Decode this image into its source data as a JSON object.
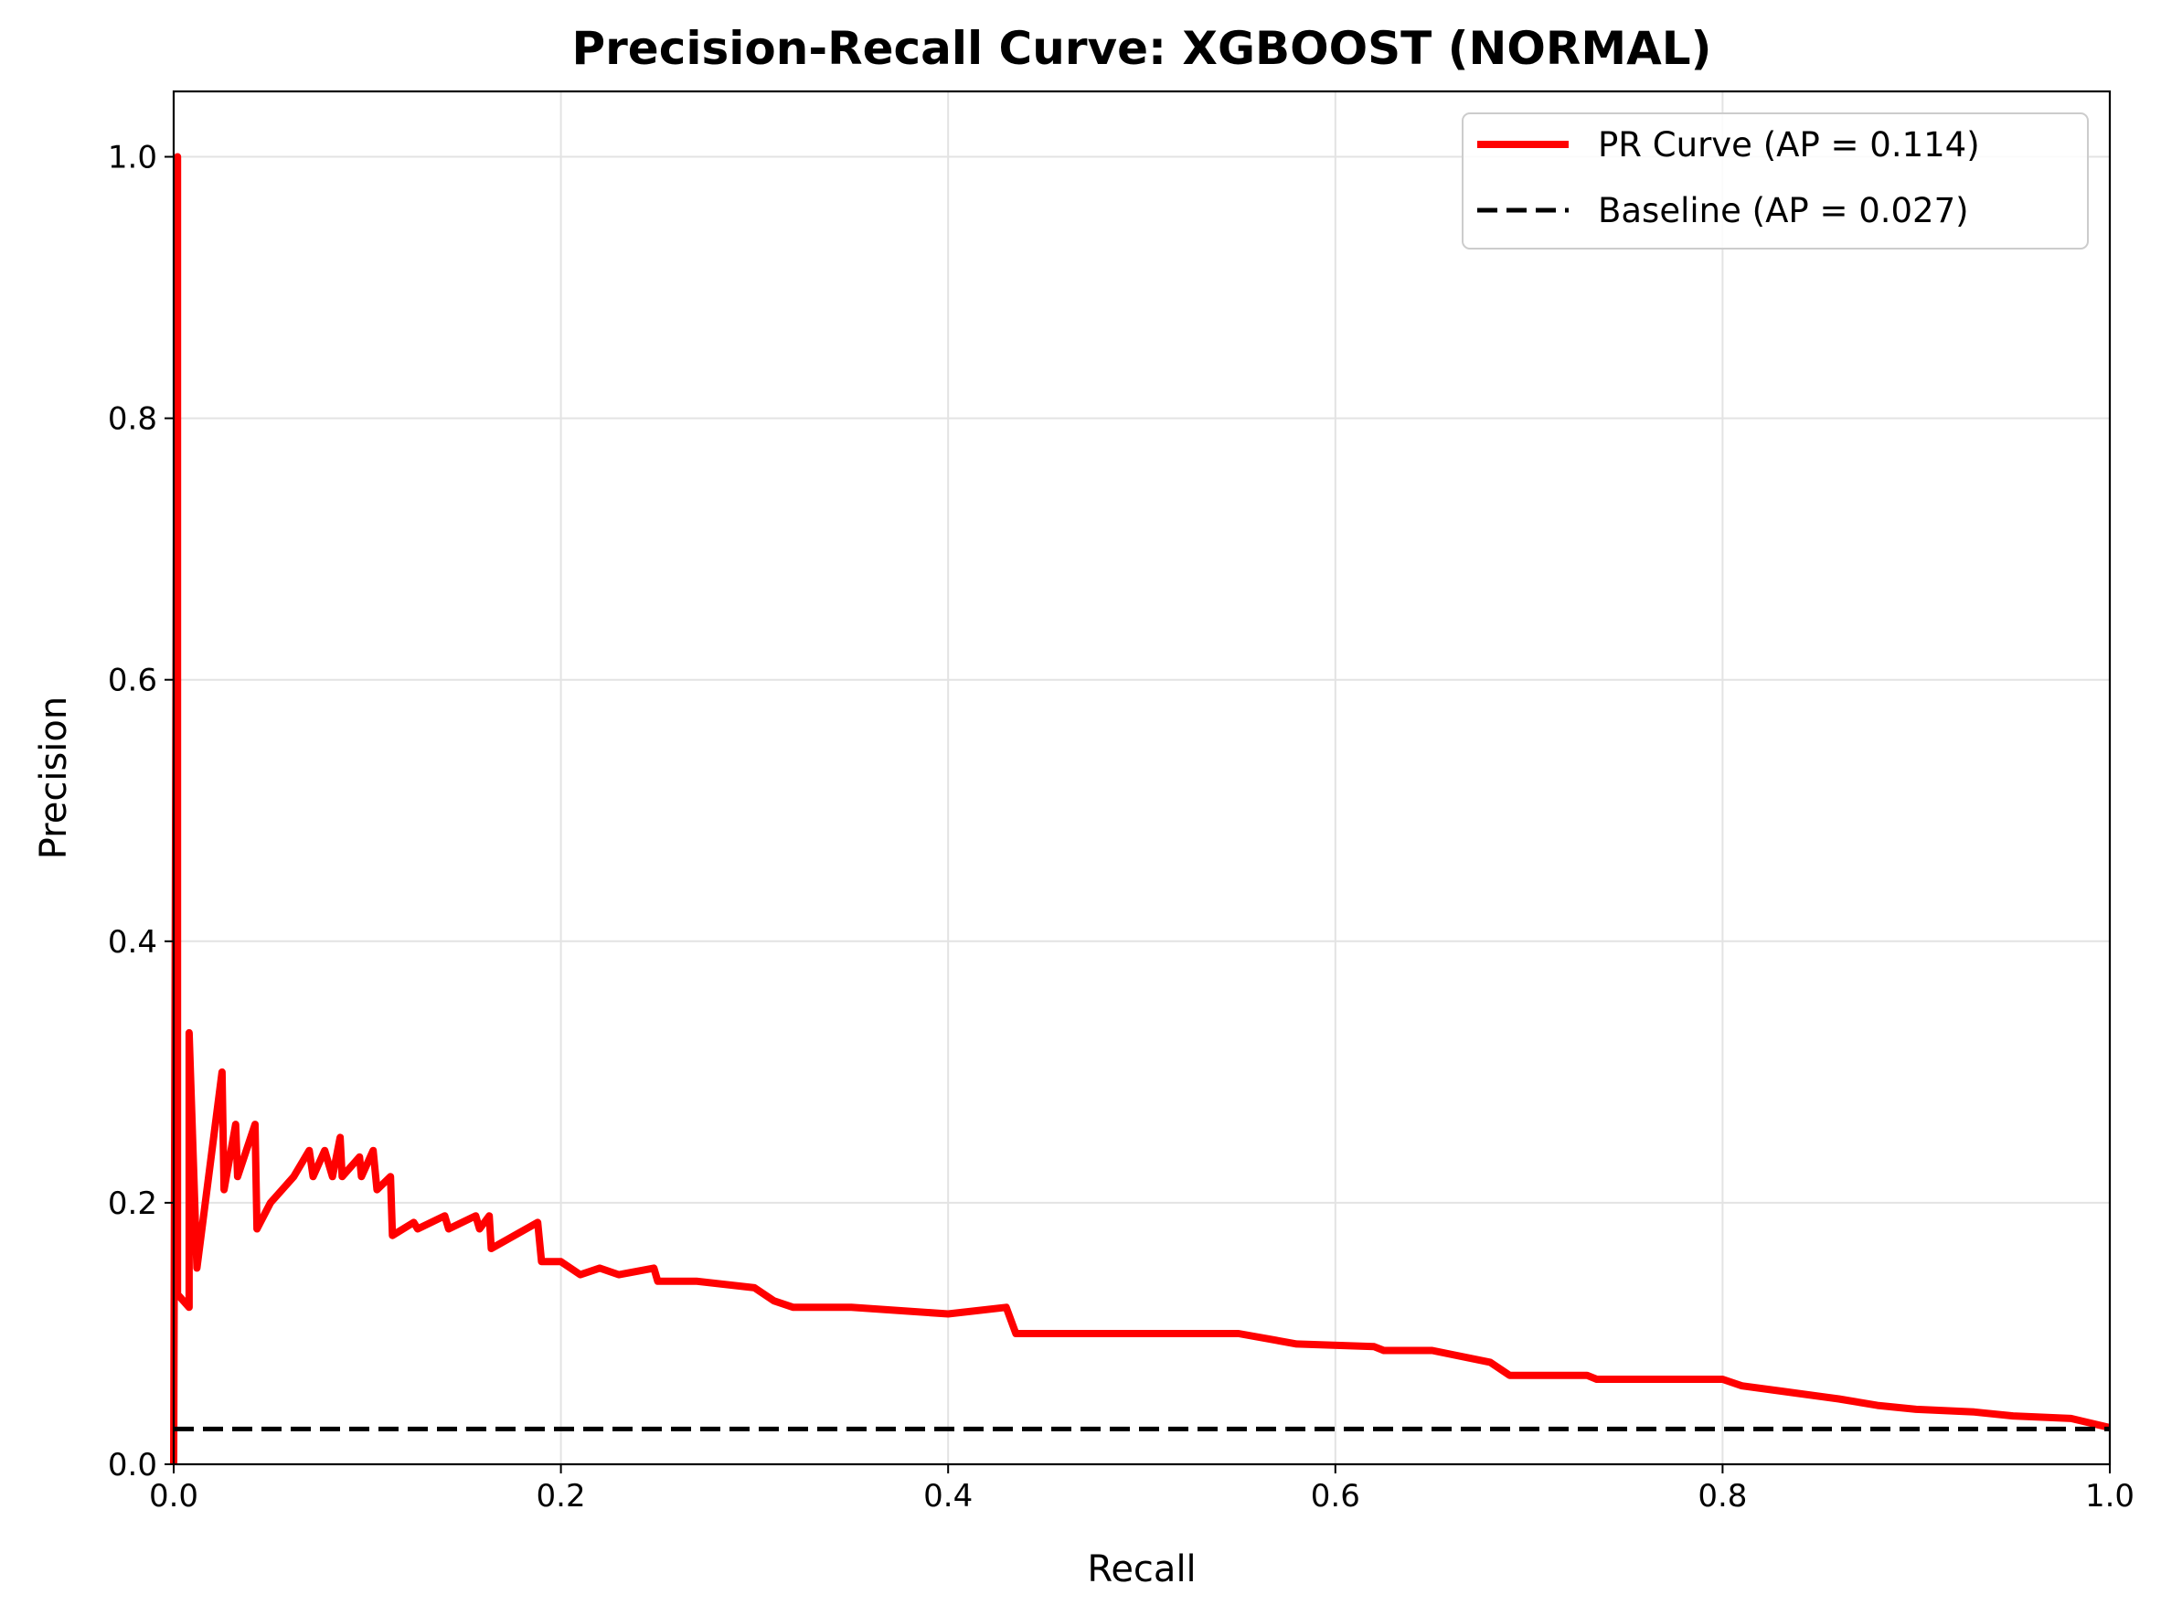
{
  "chart_data": {
    "type": "line",
    "title": "Precision-Recall Curve: XGBOOST (NORMAL)",
    "xlabel": "Recall",
    "ylabel": "Precision",
    "xlim": [
      0.0,
      1.0
    ],
    "ylim": [
      0.0,
      1.05
    ],
    "grid": true,
    "legend_position": "top-right",
    "x_ticks": [
      "0.0",
      "0.2",
      "0.4",
      "0.6",
      "0.8",
      "1.0"
    ],
    "y_ticks": [
      "0.0",
      "0.2",
      "0.4",
      "0.6",
      "0.8",
      "1.0"
    ],
    "series": [
      {
        "name": "PR Curve (AP = 0.114)",
        "color": "#ff0000",
        "style": "solid",
        "points": [
          [
            0.0,
            0.0
          ],
          [
            0.002,
            1.0
          ],
          [
            0.002,
            0.13
          ],
          [
            0.008,
            0.12
          ],
          [
            0.008,
            0.33
          ],
          [
            0.012,
            0.15
          ],
          [
            0.025,
            0.3
          ],
          [
            0.026,
            0.21
          ],
          [
            0.032,
            0.26
          ],
          [
            0.033,
            0.22
          ],
          [
            0.042,
            0.26
          ],
          [
            0.043,
            0.18
          ],
          [
            0.05,
            0.2
          ],
          [
            0.056,
            0.21
          ],
          [
            0.062,
            0.22
          ],
          [
            0.07,
            0.24
          ],
          [
            0.072,
            0.22
          ],
          [
            0.078,
            0.24
          ],
          [
            0.082,
            0.22
          ],
          [
            0.086,
            0.25
          ],
          [
            0.087,
            0.22
          ],
          [
            0.096,
            0.235
          ],
          [
            0.097,
            0.22
          ],
          [
            0.103,
            0.24
          ],
          [
            0.105,
            0.21
          ],
          [
            0.112,
            0.22
          ],
          [
            0.113,
            0.175
          ],
          [
            0.124,
            0.185
          ],
          [
            0.126,
            0.18
          ],
          [
            0.14,
            0.19
          ],
          [
            0.142,
            0.18
          ],
          [
            0.156,
            0.19
          ],
          [
            0.158,
            0.18
          ],
          [
            0.163,
            0.19
          ],
          [
            0.164,
            0.165
          ],
          [
            0.188,
            0.185
          ],
          [
            0.19,
            0.155
          ],
          [
            0.2,
            0.155
          ],
          [
            0.21,
            0.145
          ],
          [
            0.22,
            0.15
          ],
          [
            0.23,
            0.145
          ],
          [
            0.248,
            0.15
          ],
          [
            0.25,
            0.14
          ],
          [
            0.27,
            0.14
          ],
          [
            0.3,
            0.135
          ],
          [
            0.31,
            0.125
          ],
          [
            0.32,
            0.12
          ],
          [
            0.35,
            0.12
          ],
          [
            0.4,
            0.115
          ],
          [
            0.43,
            0.12
          ],
          [
            0.435,
            0.1
          ],
          [
            0.46,
            0.1
          ],
          [
            0.5,
            0.1
          ],
          [
            0.52,
            0.1
          ],
          [
            0.55,
            0.1
          ],
          [
            0.58,
            0.092
          ],
          [
            0.62,
            0.09
          ],
          [
            0.625,
            0.087
          ],
          [
            0.65,
            0.087
          ],
          [
            0.68,
            0.078
          ],
          [
            0.69,
            0.068
          ],
          [
            0.73,
            0.068
          ],
          [
            0.735,
            0.065
          ],
          [
            0.8,
            0.065
          ],
          [
            0.81,
            0.06
          ],
          [
            0.83,
            0.056
          ],
          [
            0.86,
            0.05
          ],
          [
            0.88,
            0.045
          ],
          [
            0.9,
            0.042
          ],
          [
            0.93,
            0.04
          ],
          [
            0.95,
            0.037
          ],
          [
            0.98,
            0.035
          ],
          [
            1.0,
            0.028
          ]
        ]
      },
      {
        "name": "Baseline (AP = 0.027)",
        "color": "#000000",
        "style": "dashed",
        "points": [
          [
            0.0,
            0.027
          ],
          [
            1.0,
            0.027
          ]
        ]
      }
    ]
  }
}
